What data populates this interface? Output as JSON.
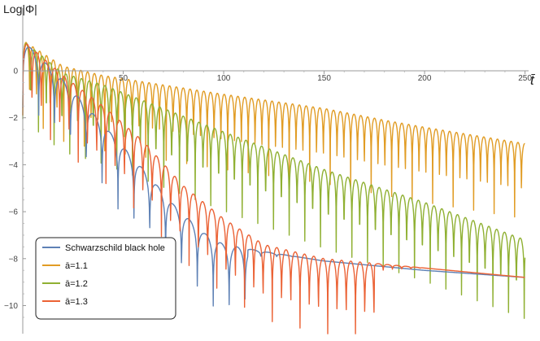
{
  "chart_data": {
    "type": "line",
    "ylabel": "Log|Φ|",
    "xlabel": "t̄",
    "xlim": [
      0,
      250
    ],
    "ylim": [
      -11,
      1.6
    ],
    "x_ticks": [
      50,
      100,
      150,
      200,
      250
    ],
    "y_ticks": [
      0,
      -2,
      -4,
      -6,
      -8,
      -10
    ],
    "grid": false,
    "legend_position": "bottom-left",
    "series": [
      {
        "name": "Schwarzschild black hole",
        "color": "#5E81B5",
        "peak_envelope": [
          [
            0,
            1.3
          ],
          [
            20,
            -0.4
          ],
          [
            40,
            -2.3
          ],
          [
            60,
            -4.2
          ],
          [
            75,
            -5.7
          ],
          [
            90,
            -6.9
          ],
          [
            100,
            -7.4
          ],
          [
            120,
            -7.7
          ],
          [
            150,
            -8.1
          ],
          [
            200,
            -8.5
          ],
          [
            250,
            -8.8
          ]
        ],
        "oscillation_period": 7.9,
        "oscillation_end": 112,
        "dip_depth": 1.8
      },
      {
        "name": "ā=1.1",
        "color": "#E19C24",
        "peak_envelope": [
          [
            0,
            1.3
          ],
          [
            20,
            0.2
          ],
          [
            40,
            -0.2
          ],
          [
            100,
            -1.0
          ],
          [
            150,
            -1.6
          ],
          [
            180,
            -2.1
          ],
          [
            200,
            -2.4
          ],
          [
            250,
            -3.1
          ]
        ],
        "oscillation_period": 3.4,
        "oscillation_end": 250,
        "dip_depth": 2.0
      },
      {
        "name": "ā=1.2",
        "color": "#8FB032",
        "peak_envelope": [
          [
            0,
            1.3
          ],
          [
            20,
            -0.1
          ],
          [
            40,
            -0.6
          ],
          [
            100,
            -2.6
          ],
          [
            150,
            -4.2
          ],
          [
            200,
            -5.6
          ],
          [
            250,
            -7.2
          ]
        ],
        "oscillation_period": 3.9,
        "oscillation_end": 250,
        "dip_depth": 2.1
      },
      {
        "name": "ā=1.3",
        "color": "#EB6235",
        "peak_envelope": [
          [
            0,
            1.3
          ],
          [
            20,
            -0.2
          ],
          [
            40,
            -1.5
          ],
          [
            60,
            -3.0
          ],
          [
            80,
            -4.9
          ],
          [
            100,
            -6.3
          ],
          [
            120,
            -7.4
          ],
          [
            150,
            -8.0
          ],
          [
            200,
            -8.4
          ],
          [
            250,
            -8.8
          ]
        ],
        "oscillation_period": 4.6,
        "oscillation_end": 175,
        "dip_depth": 2.0
      }
    ]
  }
}
